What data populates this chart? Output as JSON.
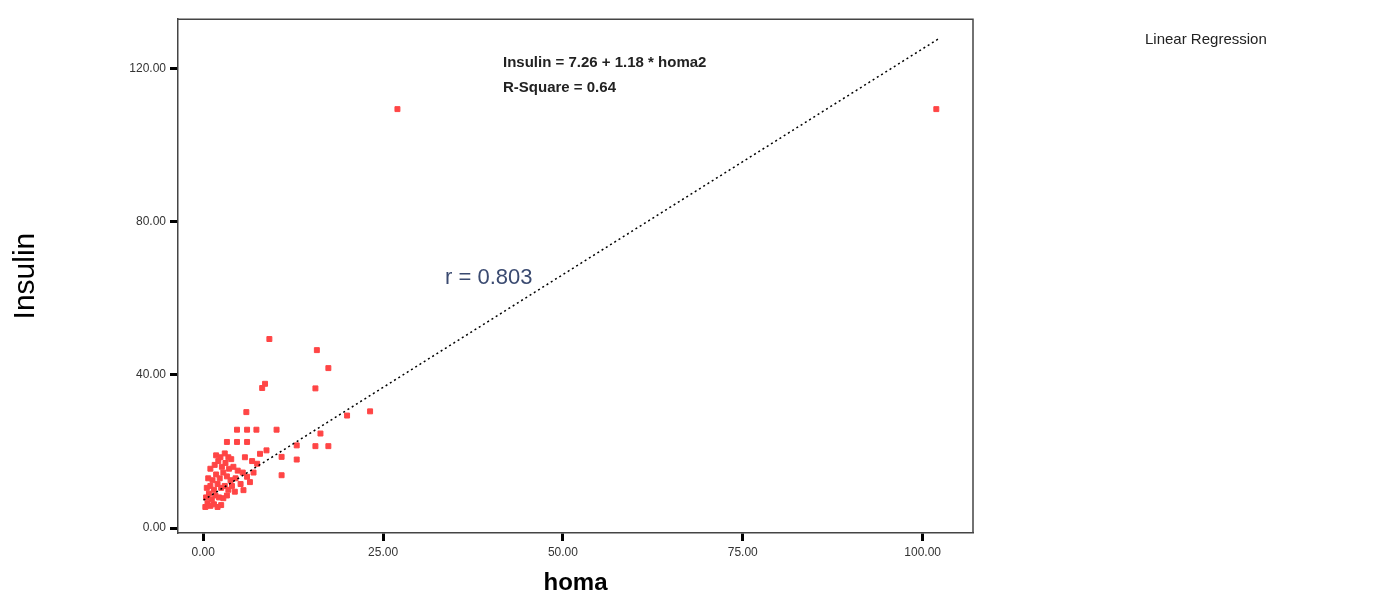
{
  "chart_data": {
    "type": "scatter",
    "xlabel": "homa",
    "ylabel": "Insulin",
    "xlim": [
      -3.5,
      107
    ],
    "ylim": [
      -1.3,
      133
    ],
    "xticks": [
      {
        "value": 0,
        "label": "0.00"
      },
      {
        "value": 25,
        "label": "25.00"
      },
      {
        "value": 50,
        "label": "50.00"
      },
      {
        "value": 75,
        "label": "75.00"
      },
      {
        "value": 100,
        "label": "100.00"
      }
    ],
    "yticks": [
      {
        "value": 0,
        "label": "0.00"
      },
      {
        "value": 40,
        "label": "40.00"
      },
      {
        "value": 80,
        "label": "80.00"
      },
      {
        "value": 120,
        "label": "120.00"
      }
    ],
    "grid": false,
    "legend": false,
    "series": [
      {
        "type": "scatter",
        "color": "#ff4545",
        "marker": "square",
        "x": [
          27,
          101.9,
          9.2,
          15.8,
          17.4,
          8.6,
          8.2,
          15.6,
          6.0,
          23.2,
          20.0,
          10.2,
          4.7,
          6.1,
          7.4,
          3.3,
          4.7,
          6.1,
          16.3,
          15.6,
          17.4,
          8.8,
          13.0,
          13.0,
          10.9,
          10.9,
          7.9,
          7.5,
          6.1,
          5.6,
          0.3,
          0.6,
          1.0,
          1.5,
          2.0,
          2.5,
          0.4,
          0.8,
          1.2,
          1.7,
          2.2,
          2.8,
          3.3,
          0.5,
          1.0,
          1.5,
          2.0,
          2.5,
          3.0,
          3.5,
          4.0,
          0.7,
          1.3,
          1.8,
          2.3,
          2.8,
          3.3,
          3.8,
          4.5,
          1.0,
          1.6,
          2.1,
          2.6,
          3.1,
          3.6,
          4.2,
          4.8,
          1.8,
          2.4,
          3.0,
          3.5,
          5.2,
          5.5,
          6.5,
          7.0,
          4.4,
          3.9,
          6.8,
          5.8
        ],
        "values": [
          109.5,
          109.5,
          49.4,
          46.5,
          41.8,
          37.7,
          36.6,
          36.5,
          30.3,
          30.5,
          29.4,
          25.7,
          25.7,
          25.7,
          25.7,
          22.5,
          22.5,
          22.5,
          24.7,
          21.4,
          21.4,
          20.3,
          21.6,
          17.9,
          18.6,
          13.8,
          19.4,
          16.8,
          13.4,
          9.9,
          5.5,
          6.5,
          5.8,
          6.2,
          5.5,
          6.0,
          8,
          9,
          7.5,
          8.5,
          8,
          7.8,
          8.5,
          10.5,
          11,
          10,
          11.5,
          10.5,
          11,
          10,
          11,
          13,
          12.5,
          14,
          13,
          14.5,
          13.5,
          12.5,
          13,
          15.5,
          16.5,
          17.5,
          16,
          17,
          15.5,
          16,
          15,
          19,
          18.5,
          19.5,
          18.5,
          11.5,
          14.5,
          12,
          14.5,
          9.5,
          18,
          17.5,
          18.5
        ]
      },
      {
        "type": "line",
        "color": "#000000",
        "marker": "none",
        "line_style": "dotted",
        "x": [
          0.05,
          102.4
        ],
        "values": [
          7.3,
          128.1
        ]
      }
    ],
    "annotations": [
      "Insulin = 7.26 + 1.18 * homa2",
      "R-Square = 0.64",
      "r = 0.803",
      "Linear Regression"
    ]
  }
}
